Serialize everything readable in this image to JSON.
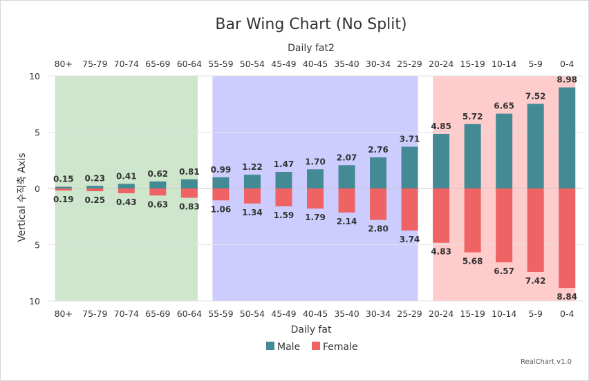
{
  "chart_data": {
    "type": "bar",
    "title": "Bar Wing Chart (No Split)",
    "xlabel": "Daily fat",
    "xlabel_top": "Daily fat2",
    "ylabel": "Vertical 수직축 Axis",
    "categories": [
      "80+",
      "75-79",
      "70-74",
      "65-69",
      "60-64",
      "55-59",
      "50-54",
      "45-49",
      "40-45",
      "35-40",
      "30-34",
      "25-29",
      "20-24",
      "15-19",
      "10-14",
      "5-9",
      "0-4"
    ],
    "series": [
      {
        "name": "Male",
        "color": "#448a95",
        "values": [
          0.15,
          0.23,
          0.41,
          0.62,
          0.81,
          0.99,
          1.22,
          1.47,
          1.7,
          2.07,
          2.76,
          3.71,
          4.85,
          5.72,
          6.65,
          7.52,
          8.98
        ]
      },
      {
        "name": "Female",
        "color": "#ef6364",
        "values": [
          0.19,
          0.25,
          0.43,
          0.63,
          0.83,
          1.06,
          1.34,
          1.59,
          1.79,
          2.14,
          2.8,
          3.74,
          4.83,
          5.68,
          6.57,
          7.42,
          8.84
        ]
      }
    ],
    "ylim": [
      0,
      10
    ],
    "yticks": [
      "10",
      "5",
      "0",
      "5",
      "10"
    ],
    "bands": [
      {
        "from": 0,
        "to": 4,
        "color": "#cde6cc"
      },
      {
        "from": 5,
        "to": 11,
        "color": "#ccccff"
      },
      {
        "from": 12,
        "to": 16,
        "color": "#ffcccc"
      }
    ],
    "grid": true,
    "legend_position": "bottom"
  },
  "credits": "RealChart v1.0"
}
